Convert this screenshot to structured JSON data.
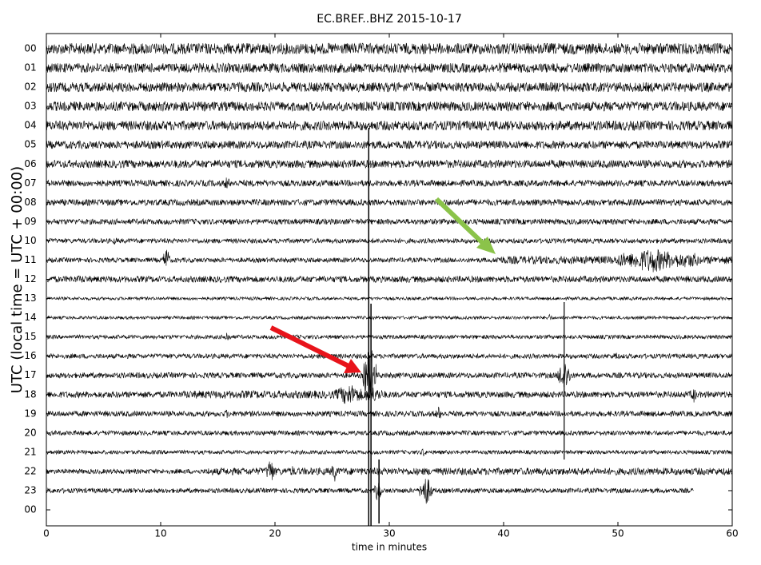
{
  "chart_data": {
    "type": "helicorder",
    "title": "EC.BREF..BHZ 2015-10-17",
    "x_label": "time in minutes",
    "y_label": "UTC (local time = UTC + 00:00)",
    "xlim": [
      0,
      60
    ],
    "xticks": [
      0,
      10,
      20,
      30,
      40,
      50,
      60
    ],
    "rows": [
      "00",
      "01",
      "02",
      "03",
      "04",
      "05",
      "06",
      "07",
      "08",
      "09",
      "10",
      "11",
      "12",
      "13",
      "14",
      "15",
      "16",
      "17",
      "18",
      "19",
      "20",
      "21",
      "22",
      "23",
      "00"
    ]
  }
}
